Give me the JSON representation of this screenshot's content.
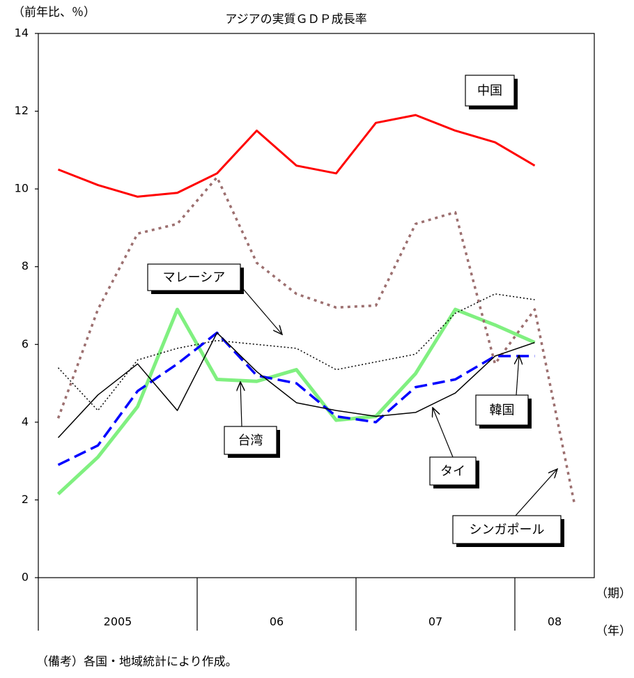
{
  "chart_data": {
    "type": "line",
    "title": "アジアの実質ＧＤＰ成長率",
    "y_label": "（前年比、％）",
    "x_label": "（期）",
    "x_group_label": "（年）",
    "note": "（備考）各国・地域統計により作成。",
    "categories": [
      null,
      null,
      null,
      null,
      null,
      null,
      null,
      null,
      null,
      null,
      null,
      null,
      null,
      null
    ],
    "x_groups": [
      {
        "label": "2005",
        "span": 4
      },
      {
        "label": "06",
        "span": 4
      },
      {
        "label": "07",
        "span": 4
      },
      {
        "label": "08",
        "span": 2
      }
    ],
    "ylim": [
      0,
      14
    ],
    "yticks": [
      0,
      2,
      4,
      6,
      8,
      10,
      12,
      14
    ],
    "grid": false,
    "series": [
      {
        "name": "中国",
        "color": "#ff0000",
        "style": "solid",
        "linewidth": 3,
        "values": [
          10.5,
          10.1,
          9.8,
          9.9,
          10.4,
          11.5,
          10.6,
          10.4,
          11.7,
          11.9,
          11.5,
          11.2,
          10.6,
          null
        ]
      },
      {
        "name": "シンガポール",
        "color": "#9c6f6f",
        "style": "dotted",
        "linewidth": 3.5,
        "values": [
          4.1,
          6.9,
          8.85,
          9.1,
          10.3,
          8.1,
          7.3,
          6.95,
          7.0,
          9.1,
          9.4,
          5.5,
          6.9,
          1.9
        ]
      },
      {
        "name": "マレーシア",
        "color": "#000000",
        "style": "fine-dotted",
        "linewidth": 1.5,
        "values": [
          5.4,
          4.3,
          5.6,
          5.9,
          6.1,
          6.0,
          5.9,
          5.35,
          5.55,
          5.75,
          6.8,
          7.3,
          7.15,
          null
        ]
      },
      {
        "name": "台湾",
        "color": "#80f080",
        "style": "solid",
        "linewidth": 5,
        "values": [
          2.15,
          3.1,
          4.4,
          6.9,
          5.1,
          5.05,
          5.35,
          4.05,
          4.15,
          5.25,
          6.9,
          6.5,
          6.05,
          null
        ]
      },
      {
        "name": "韓国",
        "color": "#0000ff",
        "style": "dashed",
        "linewidth": 3.5,
        "values": [
          2.9,
          3.4,
          4.8,
          5.5,
          6.3,
          5.2,
          5.0,
          4.15,
          4.0,
          4.9,
          5.1,
          5.7,
          5.7,
          null
        ]
      },
      {
        "name": "タイ",
        "color": "#000000",
        "style": "solid",
        "linewidth": 1.5,
        "values": [
          3.6,
          4.7,
          5.5,
          4.3,
          6.3,
          5.3,
          4.5,
          4.3,
          4.15,
          4.25,
          4.75,
          5.7,
          6.05,
          null
        ]
      }
    ]
  }
}
